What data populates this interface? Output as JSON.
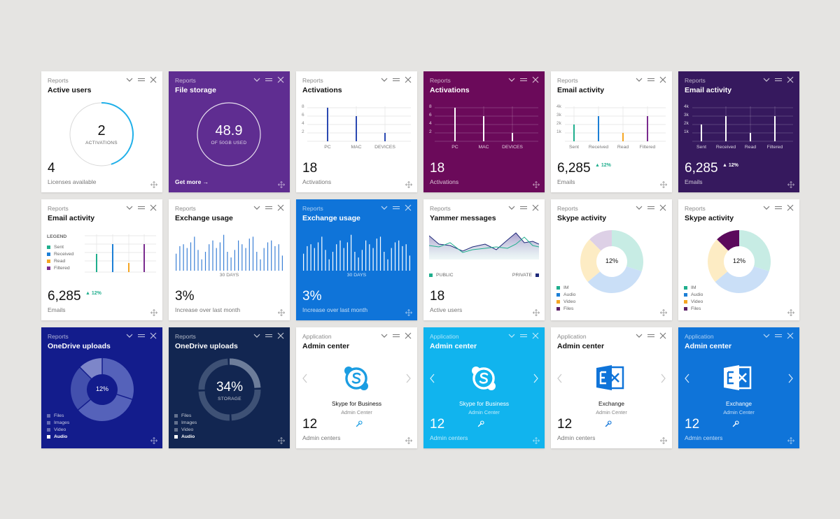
{
  "colors": {
    "background": "#e5e4e2",
    "purple": "#5f2d91",
    "plum": "#6b0a5a",
    "indigo": "#36195e",
    "blue": "#0f74d9",
    "navy": "#131c8c",
    "midnight": "#122651",
    "sky": "#11b4ee",
    "teal": "#1fae8d"
  },
  "icons": {
    "collapse": "chevron-down-icon",
    "menu": "hamburger-icon",
    "close": "close-icon",
    "move": "move-icon"
  },
  "cards": {
    "active_users": {
      "category": "Reports",
      "title": "Active users",
      "center_value": "2",
      "center_label": "ACTIVATIONS",
      "metric": "4",
      "subtitle": "Licenses available"
    },
    "file_storage": {
      "category": "Reports",
      "title": "File storage",
      "center_value": "48.9",
      "center_label": "OF 50GB USED",
      "link": "Get more →"
    },
    "activations_light": {
      "category": "Reports",
      "title": "Activations",
      "metric": "18",
      "subtitle": "Activations"
    },
    "activations_plum": {
      "category": "Reports",
      "title": "Activations",
      "metric": "18",
      "subtitle": "Activations"
    },
    "email_light": {
      "category": "Reports",
      "title": "Email activity",
      "metric": "6,285",
      "trend": "12%",
      "subtitle": "Emails"
    },
    "email_indigo": {
      "category": "Reports",
      "title": "Email activity",
      "metric": "6,285",
      "trend": "12%",
      "subtitle": "Emails"
    },
    "email_legend": {
      "category": "Reports",
      "title": "Email activity",
      "legend_title": "LEGEND",
      "legend": [
        "Sent",
        "Received",
        "Read",
        "Filtered"
      ],
      "metric": "6,285",
      "trend": "12%",
      "subtitle": "Emails"
    },
    "exchange_light": {
      "category": "Reports",
      "title": "Exchange usage",
      "axis_label": "30 DAYS",
      "metric": "3%",
      "subtitle": "Increase over last month"
    },
    "exchange_blue": {
      "category": "Reports",
      "title": "Exchange usage",
      "axis_label": "30 DAYS",
      "metric": "3%",
      "subtitle": "Increase over last month"
    },
    "yammer": {
      "category": "Reports",
      "title": "Yammer messages",
      "legend_left": "PUBLIC",
      "legend_right": "PRIVATE",
      "metric": "18",
      "subtitle": "Active users"
    },
    "skype_a": {
      "category": "Reports",
      "title": "Skype activity",
      "center_value": "12%",
      "legend": [
        "IM",
        "Audio",
        "Video",
        "Files"
      ]
    },
    "skype_b": {
      "category": "Reports",
      "title": "Skype activity",
      "center_value": "12%",
      "legend": [
        "IM",
        "Audio",
        "Video",
        "Files"
      ]
    },
    "onedrive_pie": {
      "category": "Reports",
      "title": "OneDrive uploads",
      "center_value": "12%",
      "legend": [
        "Files",
        "Images",
        "Video",
        "Audio"
      ]
    },
    "onedrive_ring": {
      "category": "Reports",
      "title": "OneDrive uploads",
      "center_value": "34%",
      "center_label": "STORAGE",
      "legend": [
        "Files",
        "Images",
        "Video",
        "Audio"
      ]
    },
    "admin_skype_light": {
      "category": "Application",
      "title": "Admin center",
      "app_name": "Skype for Business",
      "app_sub": "Admin Center",
      "metric": "12",
      "subtitle": "Admin centers"
    },
    "admin_skype_sky": {
      "category": "Application",
      "title": "Admin center",
      "app_name": "Skype for Business",
      "app_sub": "Admin Center",
      "metric": "12",
      "subtitle": "Admin centers"
    },
    "admin_exchange_light": {
      "category": "Application",
      "title": "Admin center",
      "app_name": "Exchange",
      "app_sub": "Admin Center",
      "metric": "12",
      "subtitle": "Admin centers"
    },
    "admin_exchange_blue": {
      "category": "Application",
      "title": "Admin center",
      "app_name": "Exchange",
      "app_sub": "Admin Center",
      "metric": "12",
      "subtitle": "Admin centers"
    }
  },
  "activation_axis": {
    "y_ticks": [
      "8",
      "6",
      "4",
      "2"
    ],
    "categories": [
      "PC",
      "MAC",
      "DEVICES"
    ],
    "values": [
      8,
      6,
      2
    ],
    "ymax": 8
  },
  "email_axis": {
    "y_ticks": [
      "4k",
      "3k",
      "2k",
      "1k"
    ],
    "categories": [
      "Sent",
      "Received",
      "Read",
      "Filtered"
    ],
    "values": [
      2000,
      3000,
      1000,
      3000
    ],
    "ymax": 4000
  }
}
